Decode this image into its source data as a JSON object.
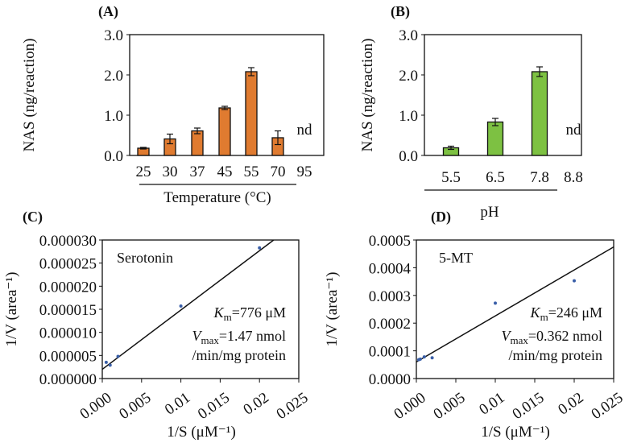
{
  "chart_data": [
    {
      "id": "A",
      "type": "bar",
      "panel_label": "(A)",
      "categories": [
        "25",
        "30",
        "37",
        "45",
        "55",
        "70",
        "95"
      ],
      "values": [
        0.18,
        0.41,
        0.61,
        1.18,
        2.08,
        0.44,
        null
      ],
      "errors": [
        0.02,
        0.12,
        0.07,
        0.04,
        0.1,
        0.17,
        null
      ],
      "nd_label": "nd",
      "ylabel": "NAS (ng/reaction)",
      "xlabel": "Temperature (°C)",
      "ylim": [
        0,
        3.0
      ],
      "yticks": [
        "0.0",
        "1.0",
        "2.0",
        "3.0"
      ],
      "color": "#E07B30"
    },
    {
      "id": "B",
      "type": "bar",
      "panel_label": "(B)",
      "categories": [
        "5.5",
        "6.5",
        "7.8",
        "8.8"
      ],
      "values": [
        0.19,
        0.83,
        2.08,
        null
      ],
      "errors": [
        0.04,
        0.09,
        0.12,
        null
      ],
      "nd_label": "nd",
      "ylabel": "NAS (ng/reaction)",
      "xlabel": "pH",
      "ylim": [
        0,
        3.0
      ],
      "yticks": [
        "0.0",
        "1.0",
        "2.0",
        "3.0"
      ],
      "color": "#7DC142"
    },
    {
      "id": "C",
      "type": "scatter",
      "panel_label": "(C)",
      "series_name": "Serotonin",
      "x": [
        0.0005,
        0.001,
        0.002,
        0.01,
        0.02
      ],
      "y": [
        3.5e-06,
        2.9e-06,
        4.8e-06,
        1.57e-05,
        2.83e-05
      ],
      "fit": {
        "intercept": 2e-06,
        "slope": 0.001284
      },
      "ylabel": "1/V (area⁻¹)",
      "xlabel": "1/S (μM⁻¹)",
      "xlim": [
        0,
        0.025
      ],
      "ylim": [
        0,
        3e-05
      ],
      "xticks": [
        "0.000",
        "0.005",
        "0.01",
        "0.015",
        "0.02",
        "0.025"
      ],
      "yticks": [
        "0.000000",
        "0.000005",
        "0.000010",
        "0.000015",
        "0.000020",
        "0.000025",
        "0.000030"
      ],
      "km": {
        "symbol": "K",
        "sub": "m",
        "value": "=776 μM"
      },
      "vmax": {
        "symbol": "V",
        "sub": "max",
        "value": "=1.47 nmol",
        "unit_line": "/min/mg  protein"
      },
      "point_color": "#3A5FA8"
    },
    {
      "id": "D",
      "type": "scatter",
      "panel_label": "(D)",
      "series_name": "5-MT",
      "x": [
        0.0003,
        0.0005,
        0.001,
        0.002,
        0.01,
        0.02
      ],
      "y": [
        6.8e-05,
        7e-05,
        7.8e-05,
        7.5e-05,
        0.000272,
        0.000353
      ],
      "fit": {
        "intercept": 6e-05,
        "slope": 0.0166
      },
      "ylabel": "1/V (area⁻¹)",
      "xlabel": "1/S (μM⁻¹)",
      "xlim": [
        0,
        0.025
      ],
      "ylim": [
        0,
        0.0005
      ],
      "xticks": [
        "0.000",
        "0.005",
        "0.01",
        "0.015",
        "0.02",
        "0.025"
      ],
      "yticks": [
        "0.0000",
        "0.0001",
        "0.0002",
        "0.0003",
        "0.0004",
        "0.0005"
      ],
      "km": {
        "symbol": "K",
        "sub": "m",
        "value": "=246 μM"
      },
      "vmax": {
        "symbol": "V",
        "sub": "max",
        "value": "=0.362 nmol",
        "unit_line": "/min/mg  protein"
      },
      "point_color": "#3A5FA8"
    }
  ]
}
